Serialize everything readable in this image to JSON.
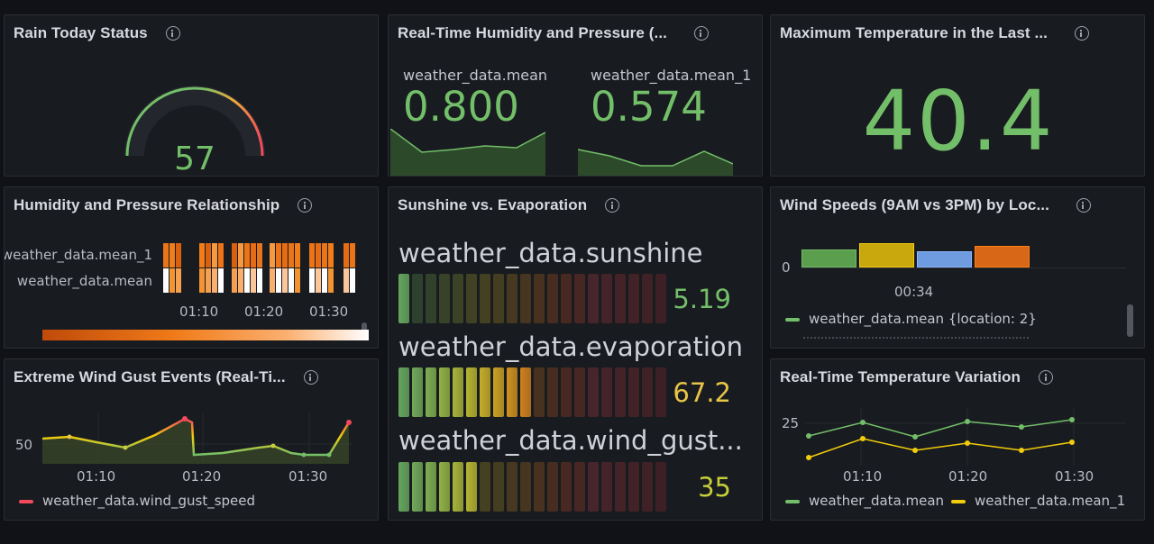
{
  "panels": {
    "rain": {
      "title": "Rain Today Status",
      "value": "57",
      "gauge_fraction": 0.57
    },
    "humpress": {
      "title": "Real-Time Humidity and Pressure (...",
      "stats": [
        {
          "label": "weather_data.mean",
          "value": "0.800"
        },
        {
          "label": "weather_data.mean_1",
          "value": "0.574"
        }
      ]
    },
    "maxtemp": {
      "title": "Maximum Temperature in the Last ...",
      "value": "40.4"
    },
    "heatmap": {
      "title": "Humidity and Pressure Relationship",
      "rows": [
        "weather_data.mean_1",
        "weather_data.mean"
      ],
      "x_ticks": [
        "01:10",
        "01:20",
        "01:30"
      ]
    },
    "sunevap": {
      "title": "Sunshine vs. Evaporation",
      "bars": [
        {
          "label": "weather_data.sunshine",
          "value": "5.19",
          "fraction": 0.05,
          "color": "#73bf69"
        },
        {
          "label": "weather_data.evaporation",
          "value": "67.2",
          "fraction": 0.5,
          "color": "#e8c547"
        },
        {
          "label": "weather_data.wind_gust...",
          "value": "35",
          "fraction": 0.3,
          "color": "#c7ce3a"
        }
      ]
    },
    "windspeeds": {
      "title": "Wind Speeds (9AM vs 3PM) by Loc...",
      "y_tick": "0",
      "x_tick": "00:34",
      "legend": [
        "weather_data.mean {location: 2}"
      ],
      "bar_colors": [
        "#5a9e4e",
        "#c9a80e",
        "#6f9be0",
        "#d86818"
      ]
    },
    "gust": {
      "title": "Extreme Wind Gust Events (Real-Ti...",
      "y_tick": "50",
      "x_ticks": [
        "01:10",
        "01:20",
        "01:30"
      ],
      "legend": "weather_data.wind_gust_speed"
    },
    "tempvar": {
      "title": "Real-Time Temperature Variation",
      "y_tick": "25",
      "x_ticks": [
        "01:10",
        "01:20",
        "01:30"
      ],
      "legend": [
        "weather_data.mean",
        "weather_data.mean_1"
      ]
    }
  },
  "colors": {
    "green": "#73bf69",
    "yellow": "#f2cc0c",
    "orange": "#ff7f11",
    "red": "#f2495c"
  }
}
